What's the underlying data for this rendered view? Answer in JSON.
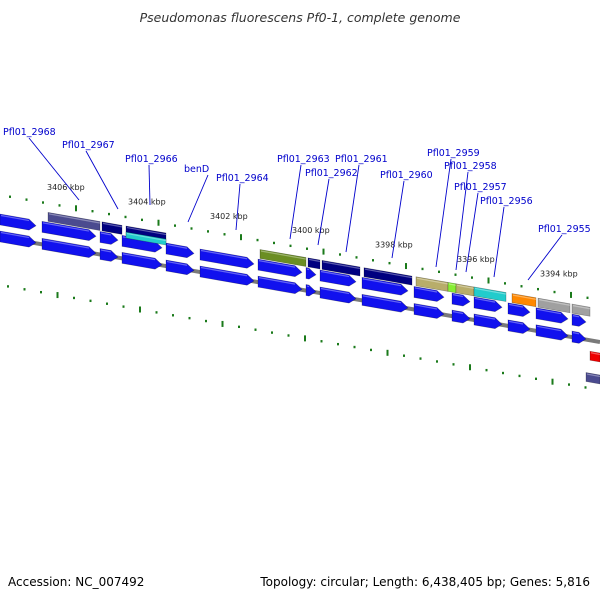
{
  "title": "Pseudomonas fluorescens Pf0-1, complete genome",
  "footer": {
    "accession": "Accession: NC_007492",
    "summary": "Topology: circular; Length: 6,438,405 bp; Genes: 5,816"
  },
  "colors": {
    "background": "#ffffff",
    "backbone": "#7a7a7a",
    "tick": "#1a7a1a",
    "gene_label": "#0000cc",
    "cds_blue": "#1111ee",
    "navy": "#000080",
    "slate": "#4b4b8f",
    "cyan": "#22cccc",
    "olive": "#6b8e23",
    "khaki": "#b8ad6a",
    "lime": "#88ee33",
    "orange": "#ff8800",
    "gray": "#a0a0a0",
    "red": "#ee0000"
  },
  "tick_labels": [
    "3406 kbp",
    "3404 kbp",
    "3402 kbp",
    "3400 kbp",
    "3398 kbp",
    "3396 kbp",
    "3394 kbp"
  ],
  "gene_labels": [
    "Pfl01_2968",
    "Pfl01_2967",
    "Pfl01_2966",
    "benD",
    "Pfl01_2964",
    "Pfl01_2963",
    "Pfl01_2962",
    "Pfl01_2961",
    "Pfl01_2960",
    "Pfl01_2959",
    "Pfl01_2958",
    "Pfl01_2957",
    "Pfl01_2956",
    "Pfl01_2955"
  ]
}
